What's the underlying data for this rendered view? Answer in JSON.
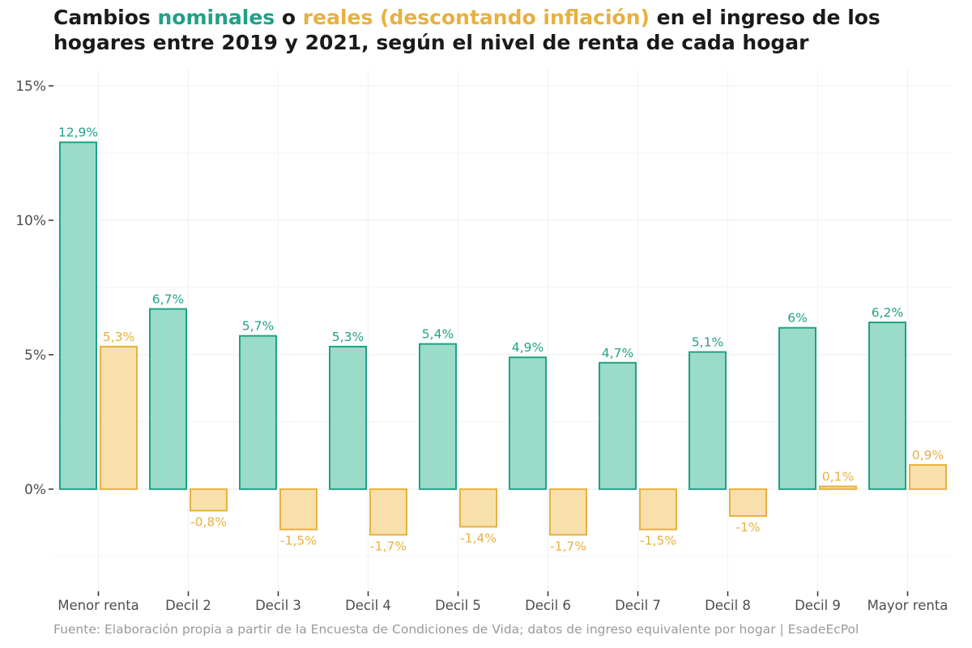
{
  "title": {
    "part1": "Cambios ",
    "nominal_word": "nominales",
    "part2": " o ",
    "real_word": "reales (descontando inflación)",
    "part3": " en el ingreso de los hogares entre 2019 y 2021, según el nivel de renta de cada hogar"
  },
  "source": "Fuente: Elaboración propia a partir de la Encuesta de Condiciones de Vida; datos de ingreso equivalente por hogar | EsadeEcPol",
  "colors": {
    "nominal_fill": "#9bdcc9",
    "nominal_stroke": "#1fa187",
    "real_fill": "#f8e0ad",
    "real_stroke": "#e9b03f",
    "grid": "#ececec",
    "axis_text": "#4d4d4d"
  },
  "chart_data": {
    "type": "bar",
    "categories": [
      "Menor renta",
      "Decil 2",
      "Decil 3",
      "Decil 4",
      "Decil 5",
      "Decil 6",
      "Decil 7",
      "Decil 8",
      "Decil 9",
      "Mayor renta"
    ],
    "series": [
      {
        "name": "nominales",
        "values": [
          12.9,
          6.7,
          5.7,
          5.3,
          5.4,
          4.9,
          4.7,
          5.1,
          6.0,
          6.2
        ],
        "labels": [
          "12,9%",
          "6,7%",
          "5,7%",
          "5,3%",
          "5,4%",
          "4,9%",
          "4,7%",
          "5,1%",
          "6%",
          "6,2%"
        ]
      },
      {
        "name": "reales (descontando inflación)",
        "values": [
          5.3,
          -0.8,
          -1.5,
          -1.7,
          -1.4,
          -1.7,
          -1.5,
          -1.0,
          0.1,
          0.9
        ],
        "labels": [
          "5,3%",
          "-0,8%",
          "-1,5%",
          "-1,7%",
          "-1,4%",
          "-1,7%",
          "-1,5%",
          "-1%",
          "0,1%",
          "0,9%"
        ]
      }
    ],
    "yticks": [
      0,
      5,
      10,
      15
    ],
    "ytick_labels": [
      "0%",
      "5%",
      "10%",
      "15%"
    ],
    "ylim": [
      -3.8,
      15.6
    ],
    "grid": true,
    "legend": "in-title"
  }
}
